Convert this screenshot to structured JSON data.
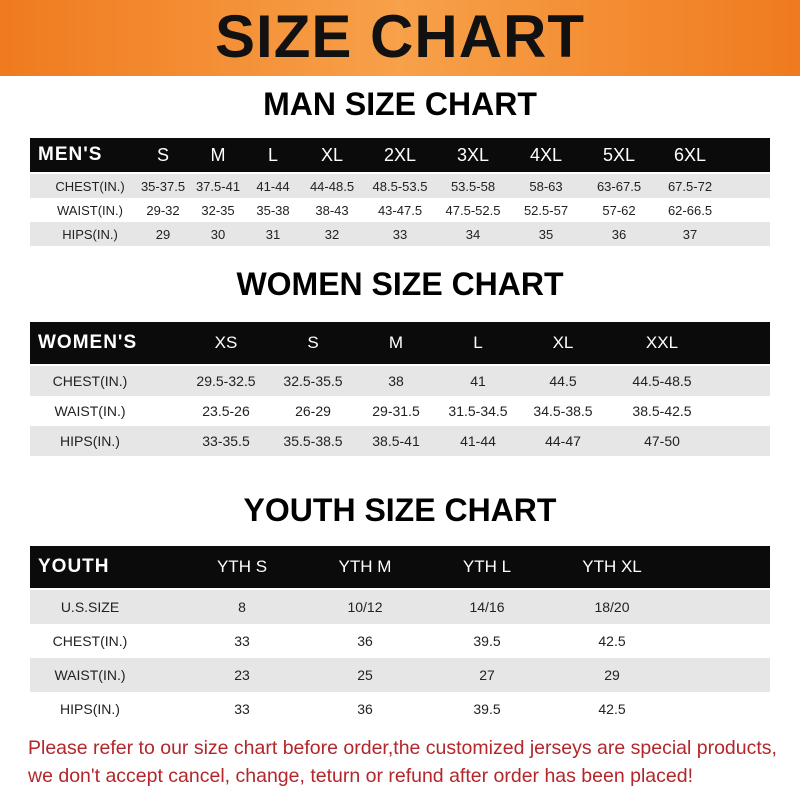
{
  "title": "SIZE CHART",
  "men": {
    "heading": "MAN SIZE CHART",
    "header": [
      "MEN'S",
      "S",
      "M",
      "L",
      "XL",
      "2XL",
      "3XL",
      "4XL",
      "5XL",
      "6XL"
    ],
    "rows": [
      [
        "CHEST(IN.)",
        "35-37.5",
        "37.5-41",
        "41-44",
        "44-48.5",
        "48.5-53.5",
        "53.5-58",
        "58-63",
        "63-67.5",
        "67.5-72"
      ],
      [
        "WAIST(IN.)",
        "29-32",
        "32-35",
        "35-38",
        "38-43",
        "43-47.5",
        "47.5-52.5",
        "52.5-57",
        "57-62",
        "62-66.5"
      ],
      [
        "HIPS(IN.)",
        "29",
        "30",
        "31",
        "32",
        "33",
        "34",
        "35",
        "36",
        "37"
      ]
    ]
  },
  "women": {
    "heading": "WOMEN SIZE CHART",
    "header": [
      "WOMEN'S",
      "XS",
      "S",
      "M",
      "L",
      "XL",
      "XXL"
    ],
    "rows": [
      [
        "CHEST(IN.)",
        "29.5-32.5",
        "32.5-35.5",
        "38",
        "41",
        "44.5",
        "44.5-48.5"
      ],
      [
        "WAIST(IN.)",
        "23.5-26",
        "26-29",
        "29-31.5",
        "31.5-34.5",
        "34.5-38.5",
        "38.5-42.5"
      ],
      [
        "HIPS(IN.)",
        "33-35.5",
        "35.5-38.5",
        "38.5-41",
        "41-44",
        "44-47",
        "47-50"
      ]
    ]
  },
  "youth": {
    "heading": "YOUTH SIZE CHART",
    "header": [
      "YOUTH",
      "YTH S",
      "YTH M",
      "YTH L",
      "YTH XL"
    ],
    "rows": [
      [
        "U.S.SIZE",
        "8",
        "10/12",
        "14/16",
        "18/20"
      ],
      [
        "CHEST(IN.)",
        "33",
        "36",
        "39.5",
        "42.5"
      ],
      [
        "WAIST(IN.)",
        "23",
        "25",
        "27",
        "29"
      ],
      [
        "HIPS(IN.)",
        "33",
        "36",
        "39.5",
        "42.5"
      ]
    ]
  },
  "note": {
    "line1": "Please refer to our size chart before order,the customized jerseys are special products,",
    "line2": "we don't accept cancel, change, teturn or refund after order has been placed!"
  },
  "colors": {
    "banner": "#f07a1e",
    "header_row": "#0b0b0b",
    "stripe": "#e6e6e6",
    "note": "#b3262a"
  }
}
